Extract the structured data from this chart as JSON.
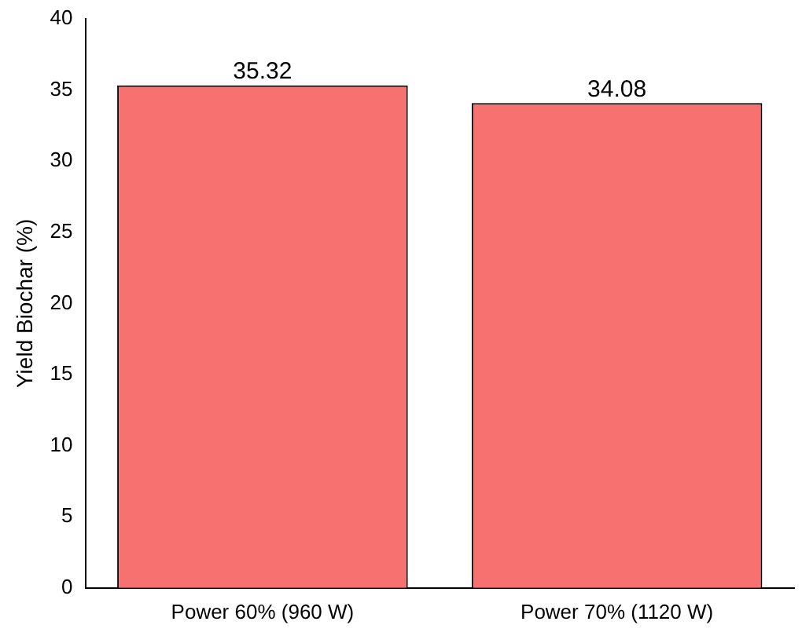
{
  "chart_data": {
    "type": "bar",
    "ylabel": "Yield Biochar (%)",
    "categories": [
      "Power 60% (960 W)",
      "Power 70% (1120 W)"
    ],
    "values": [
      35.32,
      34.08
    ],
    "color": "#f87171",
    "ylim": [
      0,
      40
    ],
    "yticks": [
      0,
      5,
      10,
      15,
      20,
      25,
      30,
      35,
      40
    ],
    "grid": false,
    "legend": false,
    "data_labels": true
  }
}
